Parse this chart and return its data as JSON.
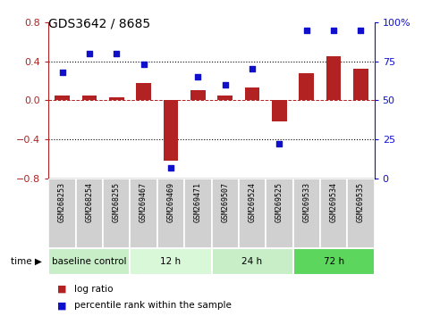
{
  "title": "GDS3642 / 8685",
  "samples": [
    "GSM268253",
    "GSM268254",
    "GSM268255",
    "GSM269467",
    "GSM269469",
    "GSM269471",
    "GSM269507",
    "GSM269524",
    "GSM269525",
    "GSM269533",
    "GSM269534",
    "GSM269535"
  ],
  "log_ratio": [
    0.05,
    0.05,
    0.03,
    0.18,
    -0.62,
    0.1,
    0.05,
    0.13,
    -0.22,
    0.28,
    0.45,
    0.32
  ],
  "percentile_rank": [
    68,
    80,
    80,
    73,
    7,
    65,
    60,
    70,
    22,
    95,
    95,
    95
  ],
  "groups": [
    {
      "label": "baseline control",
      "start": 0,
      "end": 3
    },
    {
      "label": "12 h",
      "start": 3,
      "end": 6
    },
    {
      "label": "24 h",
      "start": 6,
      "end": 9
    },
    {
      "label": "72 h",
      "start": 9,
      "end": 12
    }
  ],
  "group_colors": [
    "#c8eec8",
    "#d8f8d8",
    "#c8eec8",
    "#5cd65c"
  ],
  "bar_color": "#B22222",
  "dot_color": "#1010CC",
  "ylim_left": [
    -0.8,
    0.8
  ],
  "ylim_right": [
    0,
    100
  ],
  "yticks_left": [
    -0.8,
    -0.4,
    0.0,
    0.4,
    0.8
  ],
  "yticks_right": [
    0,
    25,
    50,
    75,
    100
  ],
  "ytick_labels_right": [
    "0",
    "25",
    "50",
    "75",
    "100%"
  ],
  "bar_width": 0.55,
  "sample_box_color": "#d0d0d0",
  "plot_bg": "#ffffff"
}
